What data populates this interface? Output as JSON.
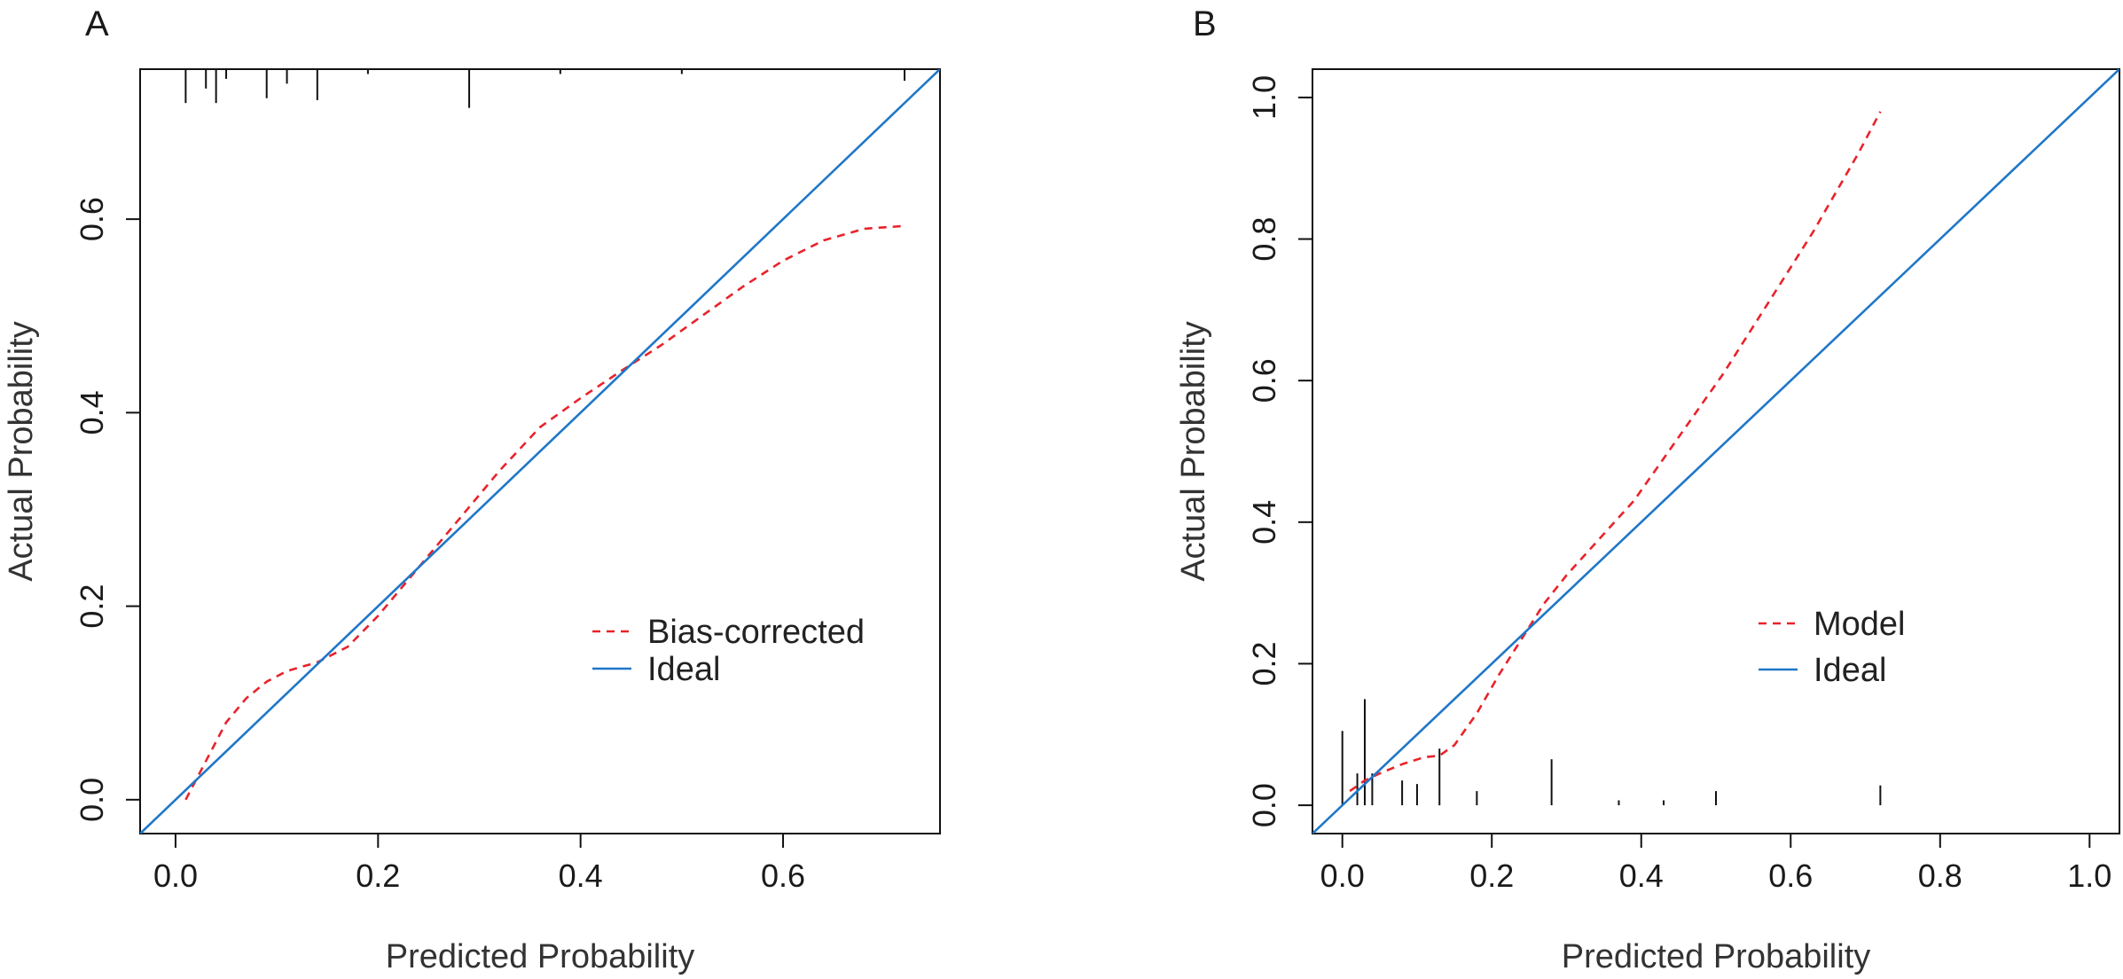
{
  "chart_data": [
    {
      "type": "line",
      "panel": "A",
      "panel_label": "A",
      "xlabel": "Predicted Probability",
      "ylabel": "Actual Probability",
      "xlim": [
        -0.035,
        0.755
      ],
      "ylim": [
        -0.035,
        0.755
      ],
      "xticks": [
        0.0,
        0.2,
        0.4,
        0.6
      ],
      "xtick_labels": [
        "0.0",
        "0.2",
        "0.4",
        "0.6"
      ],
      "yticks": [
        0.0,
        0.2,
        0.4,
        0.6
      ],
      "ytick_labels": [
        "0.0",
        "0.2",
        "0.4",
        "0.6"
      ],
      "legend": {
        "position": "center-right",
        "entries": [
          "Bias-corrected",
          "Ideal"
        ]
      },
      "series": [
        {
          "name": "Bias-corrected",
          "color": "#e8232b",
          "style": "dashed",
          "x": [
            0.01,
            0.03,
            0.05,
            0.07,
            0.09,
            0.11,
            0.14,
            0.17,
            0.2,
            0.24,
            0.28,
            0.32,
            0.36,
            0.4,
            0.44,
            0.48,
            0.52,
            0.56,
            0.6,
            0.64,
            0.68,
            0.72
          ],
          "y": [
            0.0,
            0.04,
            0.08,
            0.105,
            0.122,
            0.133,
            0.142,
            0.158,
            0.19,
            0.24,
            0.29,
            0.34,
            0.385,
            0.415,
            0.443,
            0.47,
            0.5,
            0.53,
            0.557,
            0.578,
            0.59,
            0.593
          ]
        },
        {
          "name": "Ideal",
          "color": "#1f77c8",
          "style": "solid",
          "x": [
            -0.04,
            0.76
          ],
          "y": [
            -0.04,
            0.76
          ]
        }
      ],
      "rug": {
        "position": "top",
        "x": [
          0.01,
          0.03,
          0.04,
          0.05,
          0.09,
          0.11,
          0.14,
          0.19,
          0.29,
          0.38,
          0.5,
          0.72
        ],
        "heights": [
          0.035,
          0.02,
          0.035,
          0.01,
          0.03,
          0.015,
          0.032,
          0.005,
          0.04,
          0.005,
          0.005,
          0.012
        ]
      }
    },
    {
      "type": "line",
      "panel": "B",
      "panel_label": "B",
      "xlabel": "Predicted Probability",
      "ylabel": "Actual Probability",
      "xlim": [
        -0.04,
        1.04
      ],
      "ylim": [
        -0.04,
        1.04
      ],
      "xticks": [
        0.0,
        0.2,
        0.4,
        0.6,
        0.8,
        1.0
      ],
      "xtick_labels": [
        "0.0",
        "0.2",
        "0.4",
        "0.6",
        "0.8",
        "1.0"
      ],
      "yticks": [
        0.0,
        0.2,
        0.4,
        0.6,
        0.8,
        1.0
      ],
      "ytick_labels": [
        "0.0",
        "0.2",
        "0.4",
        "0.6",
        "0.8",
        "1.0"
      ],
      "legend": {
        "position": "center-right",
        "entries": [
          "Model",
          "Ideal"
        ]
      },
      "series": [
        {
          "name": "Model",
          "color": "#e8232b",
          "style": "dashed",
          "x": [
            0.01,
            0.03,
            0.05,
            0.08,
            0.11,
            0.13,
            0.15,
            0.18,
            0.21,
            0.24,
            0.27,
            0.3,
            0.33,
            0.36,
            0.39,
            0.42,
            0.45,
            0.48,
            0.51,
            0.54,
            0.57,
            0.6,
            0.63,
            0.66,
            0.69,
            0.72
          ],
          "y": [
            0.02,
            0.035,
            0.045,
            0.058,
            0.068,
            0.07,
            0.085,
            0.13,
            0.185,
            0.235,
            0.285,
            0.325,
            0.36,
            0.395,
            0.43,
            0.475,
            0.52,
            0.565,
            0.61,
            0.66,
            0.71,
            0.76,
            0.81,
            0.865,
            0.92,
            0.98
          ]
        },
        {
          "name": "Ideal",
          "color": "#1f77c8",
          "style": "solid",
          "x": [
            -0.045,
            1.045
          ],
          "y": [
            -0.045,
            1.045
          ]
        }
      ],
      "rug": {
        "position": "bottom",
        "x": [
          0.0,
          0.02,
          0.03,
          0.04,
          0.08,
          0.1,
          0.13,
          0.18,
          0.28,
          0.37,
          0.43,
          0.5,
          0.72
        ],
        "heights": [
          0.105,
          0.045,
          0.15,
          0.045,
          0.035,
          0.03,
          0.08,
          0.02,
          0.065,
          0.007,
          0.007,
          0.02,
          0.028
        ]
      }
    }
  ]
}
